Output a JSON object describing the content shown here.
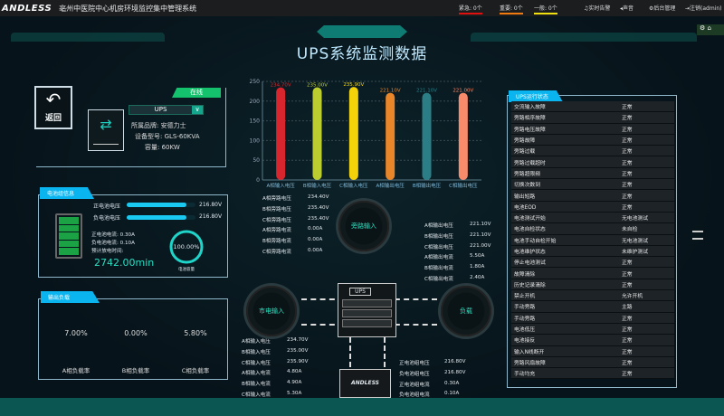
{
  "topbar": {
    "logo": "ANDLESS",
    "title": "亳州中医院中心机房环境监控集中管理系统",
    "alarms": [
      {
        "label": "紧急: 0个",
        "color": "#e01010"
      },
      {
        "label": "重要: 0个",
        "color": "#f07a10"
      },
      {
        "label": "一般: 0个",
        "color": "#f0e010"
      }
    ],
    "nav": [
      "实时告警",
      "声音",
      "后台管理",
      "注销(admin)"
    ]
  },
  "page_title": "UPS系统监测数据",
  "device": {
    "back_label": "返回",
    "status": "在线",
    "select_value": "UPS",
    "brand": "所属品牌: 安德力士",
    "model": "设备型号: GLS-60KVA",
    "capacity": "容量: 60KW"
  },
  "battery": {
    "title": "电池组信息",
    "pos_voltage_label": "正电池电压",
    "pos_voltage": "216.80V",
    "pos_fill": 0.87,
    "neg_voltage_label": "负电池电压",
    "neg_voltage": "216.80V",
    "neg_fill": 0.87,
    "pos_current": "正电池电流:  0.30A",
    "neg_current": "负电池电流:  0.10A",
    "remain_label": "预计放电时间:",
    "remain": "2742.00min",
    "capacity_pct": "100.00%",
    "capacity_value": 100,
    "capacity_label": "电池容量"
  },
  "output_load": {
    "title": "输出负载",
    "gauges": [
      {
        "value": "7.00%",
        "pct": 7,
        "label": "A相负载率"
      },
      {
        "value": "0.00%",
        "pct": 0,
        "label": "B相负载率"
      },
      {
        "value": "5.80%",
        "pct": 5.8,
        "label": "C相负载率"
      }
    ]
  },
  "chart_data": {
    "type": "bar",
    "categories": [
      "A相输入电压",
      "B相输入电压",
      "C相输入电压",
      "A相输出电压",
      "B相输出电压",
      "C相输出电压"
    ],
    "values": [
      234.7,
      235.0,
      235.9,
      221.1,
      221.1,
      221.0
    ],
    "data_labels": [
      "234.70V",
      "235.00V",
      "235.90V",
      "221.10V",
      "221.10V",
      "221.00V"
    ],
    "colors": [
      "#d8262f",
      "#bccd2f",
      "#f5d30b",
      "#e9862a",
      "#2b7d86",
      "#f98a6a"
    ],
    "ylim": [
      0,
      250
    ],
    "yticks": [
      "0",
      "50",
      "100",
      "150",
      "200",
      "250"
    ],
    "grid": true
  },
  "bypass": {
    "label": "旁路输入",
    "rows": [
      [
        "A相旁路电压",
        "234.40V"
      ],
      [
        "B相旁路电压",
        "235.40V"
      ],
      [
        "C相旁路电压",
        "235.40V"
      ],
      [
        "A相旁路电流",
        "0.00A"
      ],
      [
        "B相旁路电流",
        "0.00A"
      ],
      [
        "C相旁路电流",
        "0.00A"
      ]
    ]
  },
  "output": {
    "rows": [
      [
        "A相输出电压",
        "221.10V"
      ],
      [
        "B相输出电压",
        "221.10V"
      ],
      [
        "C相输出电压",
        "221.00V"
      ],
      [
        "A相输出电流",
        "5.50A"
      ],
      [
        "B相输出电流",
        "1.80A"
      ],
      [
        "C相输出电流",
        "2.40A"
      ]
    ]
  },
  "mains": {
    "label": "市电输入",
    "rows": [
      [
        "A相输入电压",
        "234.70V"
      ],
      [
        "B相输入电压",
        "235.00V"
      ],
      [
        "C相输入电压",
        "235.90V"
      ],
      [
        "A相输入电流",
        "4.80A"
      ],
      [
        "B相输入电流",
        "4.90A"
      ],
      [
        "C相输入电流",
        "5.30A"
      ]
    ]
  },
  "load_label": "负载",
  "ups_box_label": "UPS",
  "battery_brand": "ANDLESS",
  "battery_group": {
    "rows": [
      [
        "正电池组电压",
        "216.80V"
      ],
      [
        "负电池组电压",
        "216.80V"
      ],
      [
        "正电池组电流",
        "0.30A"
      ],
      [
        "负电池组电流",
        "0.10A"
      ]
    ]
  },
  "status_panel": {
    "title": "UPS运行状态",
    "rows": [
      [
        "交流输入故障",
        "正常"
      ],
      [
        "旁路相序故障",
        "正常"
      ],
      [
        "旁路电压故障",
        "正常"
      ],
      [
        "旁路故障",
        "正常"
      ],
      [
        "旁路过载",
        "正常"
      ],
      [
        "旁路过载超时",
        "正常"
      ],
      [
        "旁路超限频",
        "正常"
      ],
      [
        "切换次数到",
        "正常"
      ],
      [
        "输出短路",
        "正常"
      ],
      [
        "电池EOD",
        "正常"
      ],
      [
        "电池测试开始",
        "无电池测试"
      ],
      [
        "电池自检状态",
        "未自检"
      ],
      [
        "电池手动自检开始",
        "无电池测试"
      ],
      [
        "电池维护状态",
        "未维护测试"
      ],
      [
        "停止电池测试",
        "正常"
      ],
      [
        "故障清除",
        "正常"
      ],
      [
        "历史记录清除",
        "正常"
      ],
      [
        "禁止开机",
        "允许开机"
      ],
      [
        "手动旁路",
        "主路"
      ],
      [
        "手动旁路",
        "正常"
      ],
      [
        "电池低压",
        "正常"
      ],
      [
        "电池接反",
        "正常"
      ],
      [
        "输入N线断开",
        "正常"
      ],
      [
        "旁路风扇故障",
        "正常"
      ],
      [
        "手动均充",
        "正常"
      ]
    ]
  }
}
